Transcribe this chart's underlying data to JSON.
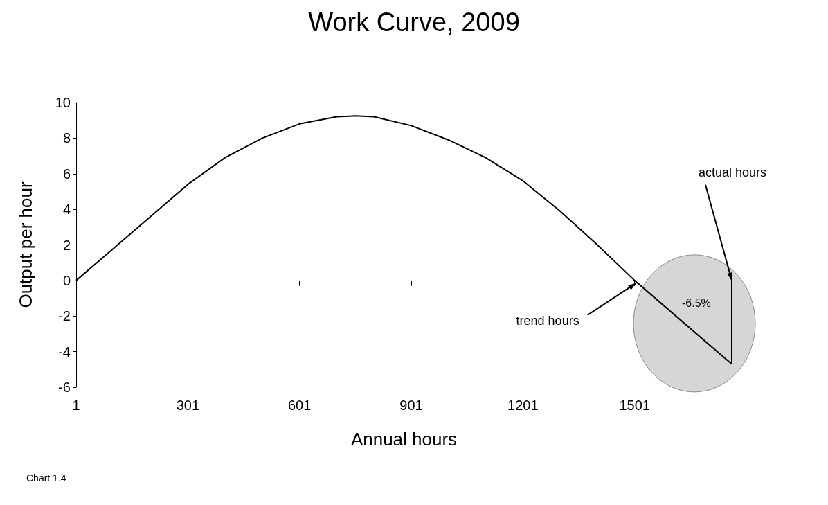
{
  "chart_data": {
    "type": "line",
    "title": "Work Curve, 2009",
    "xlabel": "Annual hours",
    "ylabel": "Output per hour",
    "series": [
      {
        "color": "#000000",
        "x": [
          1,
          101,
          201,
          301,
          401,
          501,
          601,
          701,
          751,
          801,
          901,
          1001,
          1101,
          1201,
          1301,
          1401,
          1501,
          1762
        ],
        "values": [
          0,
          1.8,
          3.6,
          5.4,
          6.9,
          8.0,
          8.8,
          9.2,
          9.25,
          9.2,
          8.7,
          7.9,
          6.9,
          5.6,
          3.9,
          2.0,
          0,
          -4.7
        ]
      }
    ],
    "xlim": [
      1,
      1762
    ],
    "xticks": [
      1,
      301,
      601,
      901,
      1201,
      1501
    ],
    "ylim": [
      -6,
      10
    ],
    "yticks": [
      -6,
      -4,
      -2,
      0,
      2,
      4,
      6,
      8,
      10
    ],
    "marker": "none",
    "line_style": "solid",
    "annotations": [
      "actual hours",
      {
        "text": "trend hours",
        "x": 1501,
        "y": 0
      },
      "-6.5%",
      "Chart 1.4"
    ]
  }
}
